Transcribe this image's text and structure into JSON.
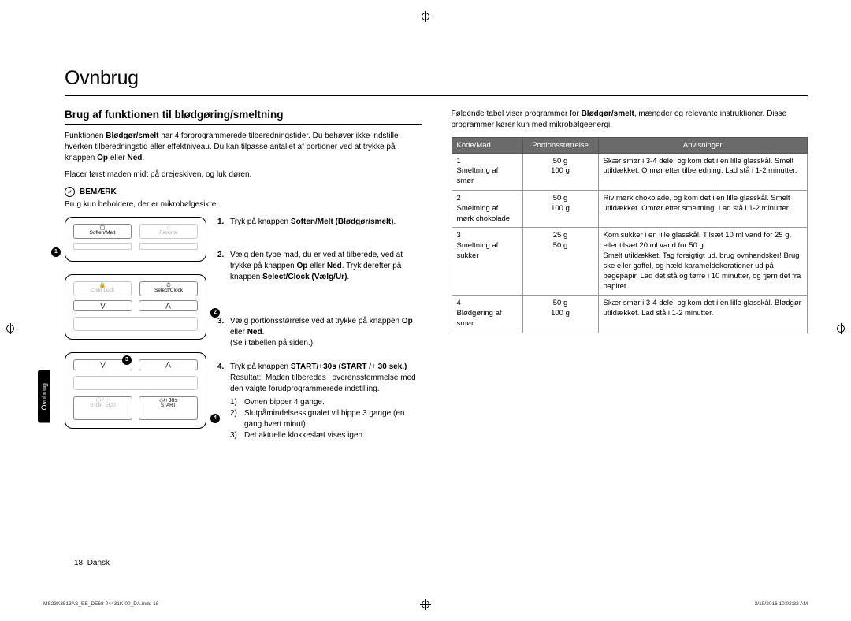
{
  "page_title": "Ovnbrug",
  "section_title": "Brug af funktionen til blødgøring/smeltning",
  "intro_parts": {
    "a": "Funktionen ",
    "b": "Blødgør/smelt",
    "c": " har 4 forprogrammerede tilberedningstider. Du behøver ikke indstille hverken tilberedningstid eller effektniveau. Du kan tilpasse antallet af portioner ved at trykke på knappen ",
    "d": "Op",
    "e": " eller ",
    "f": "Ned",
    "g": "."
  },
  "placement": "Placer først maden midt på drejeskiven, og luk døren.",
  "note_label": "BEMÆRK",
  "note_text": "Brug kun beholdere, der er mikrobølgesikre.",
  "panel_labels": {
    "soften": "Soften/Melt",
    "favorite": "Favorite",
    "child_lock": "Child Lock",
    "select_clock": "Select/Clock",
    "plus30": "/+30s",
    "stop": "STOP",
    "eco": "ECO",
    "start": "START"
  },
  "steps": [
    {
      "num": "1.",
      "pre": "Tryk på knappen ",
      "bold": "Soften/Melt (Blødgør/smelt)",
      "post": "."
    },
    {
      "num": "2.",
      "pre": "Vælg den type mad, du er ved at tilberede, ved at trykke på knappen ",
      "bold": "Op",
      "mid": " eller ",
      "bold2": "Ned",
      "post": ". Tryk derefter på knappen ",
      "bold3": "Select/Clock (Vælg/Ur)",
      "post2": "."
    },
    {
      "num": "3.",
      "pre": "Vælg portionsstørrelse ved at trykke på knappen ",
      "bold": "Op",
      "mid": " eller ",
      "bold2": "Ned",
      "post": ".",
      "tail": "(Se i tabellen på siden.)"
    },
    {
      "num": "4.",
      "pre": "Tryk på knappen ",
      "bold": "START/+30s (START /+ 30 sek.)",
      "post": "",
      "result_label": "Resultat:",
      "result_lead": "Maden tilberedes i overensstemmelse med den valgte forudprogrammerede indstilling.",
      "subs": [
        {
          "n": "1)",
          "t": "Ovnen bipper 4 gange."
        },
        {
          "n": "2)",
          "t": "Slutpåmindelsessignalet vil bippe 3 gange (en gang hvert minut)."
        },
        {
          "n": "3)",
          "t": "Det aktuelle klokkeslæt vises igen."
        }
      ]
    }
  ],
  "right_intro": {
    "a": "Følgende tabel viser programmer for ",
    "b": "Blødgør/smelt",
    "c": ", mængder og relevante instruktioner. Disse programmer kører kun med mikrobølgeenergi."
  },
  "table": {
    "headers": [
      "Kode/Mad",
      "Portionsstørrelse",
      "Anvisninger"
    ],
    "rows": [
      {
        "code": "1\nSmeltning af smør",
        "portion": "50 g\n100 g",
        "instr": "Skær smør i 3-4 dele, og kom det i en lille glasskål. Smelt utildækket. Omrør efter tilberedning. Lad stå i 1-2 minutter."
      },
      {
        "code": "2\nSmeltning af mørk chokolade",
        "portion": "50 g\n100 g",
        "instr": "Riv mørk chokolade, og kom det i en lille glasskål. Smelt utildækket. Omrør efter smeltning. Lad stå i 1-2 minutter."
      },
      {
        "code": "3\nSmeltning af sukker",
        "portion": "25 g\n50 g",
        "instr": "Kom sukker i en lille glasskål. Tilsæt 10 ml vand for 25 g, eller tilsæt 20 ml vand for 50 g.\nSmelt utildækket. Tag forsigtigt ud, brug ovnhandsker! Brug ske eller gaffel, og hæld karameldekorationer ud på bagepapir. Lad det stå og tørre i 10 minutter, og fjern det fra papiret."
      },
      {
        "code": "4\nBlødgøring af smør",
        "portion": "50 g\n100 g",
        "instr": "Skær smør i 3-4 dele, og kom det i en lille glasskål. Blødgør utildækket. Lad stå i 1-2 minutter."
      }
    ]
  },
  "side_tab": "Ovnbrug",
  "footer": {
    "page": "18",
    "lang": "Dansk"
  },
  "tiny_left": "MS23K3513AS_EE_DE68-04431K-00_DA.indd   18",
  "tiny_right": "2/15/2016   10:02:32 AM",
  "colors": {
    "header_bg": "#6a6a6a",
    "border": "#999999",
    "text": "#000000"
  }
}
